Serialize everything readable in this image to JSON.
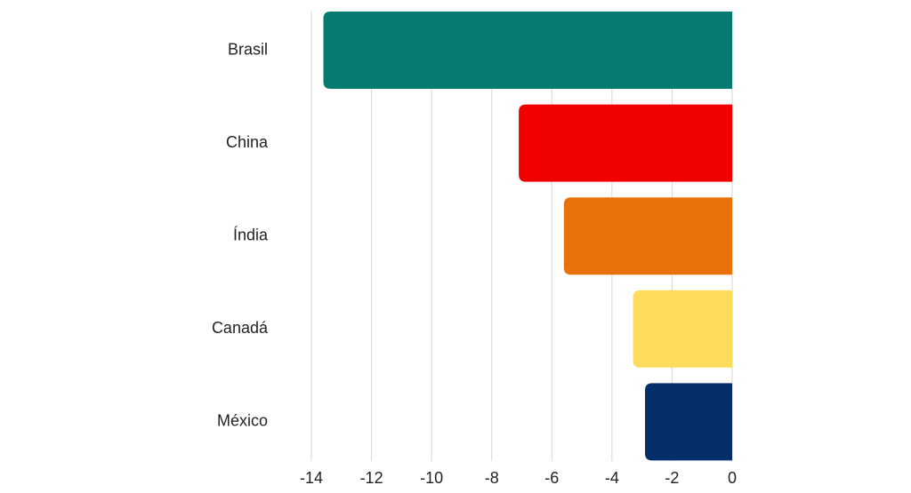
{
  "chart_data": {
    "type": "hbar",
    "categories": [
      "Brasil",
      "China",
      "Índia",
      "Canadá",
      "México"
    ],
    "values": [
      -13.6,
      -7.1,
      -5.6,
      -3.3,
      -2.9
    ],
    "colors": [
      "#047a71",
      "#f00000",
      "#e8710a",
      "#fddc5c",
      "#052e6b"
    ],
    "xlim": [
      -14,
      0
    ],
    "xticks": [
      -14,
      -12,
      -10,
      -8,
      -6,
      -4,
      -2,
      0
    ],
    "grid": true
  }
}
